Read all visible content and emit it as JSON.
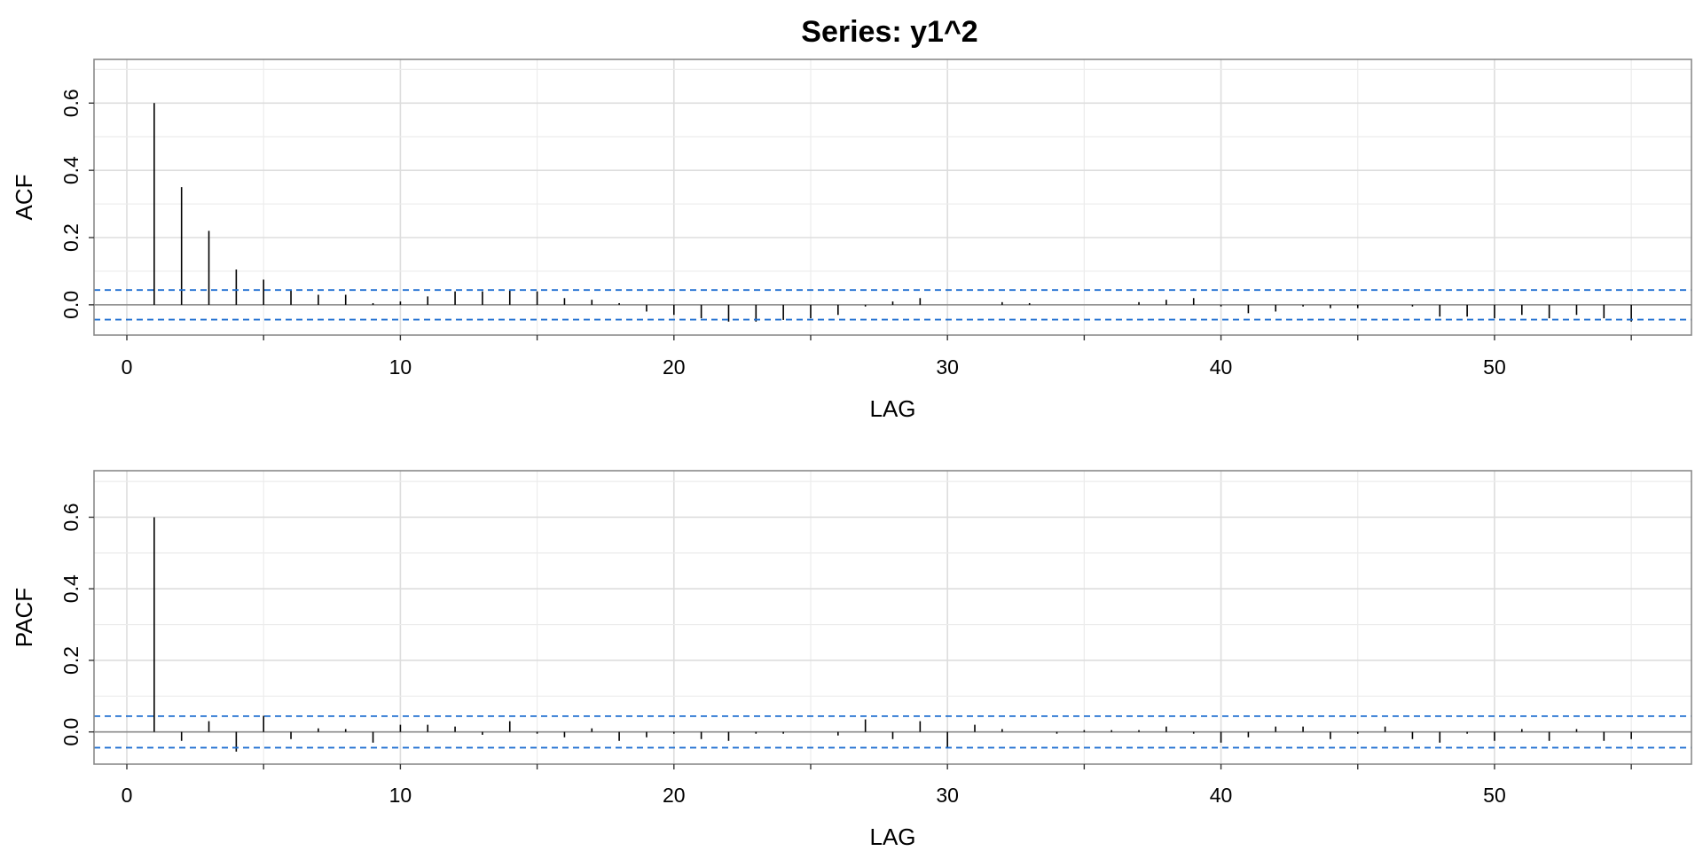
{
  "chart_data": [
    {
      "type": "bar",
      "subtype": "acf",
      "title": "Series:  y1^2",
      "xlabel": "LAG",
      "ylabel": "ACF",
      "xlim": [
        -1.2,
        57.2
      ],
      "ylim": [
        -0.09,
        0.73
      ],
      "x_ticks": [
        0,
        10,
        20,
        30,
        40,
        50
      ],
      "x_tick_labels": [
        "0",
        "10",
        "20",
        "30",
        "40",
        "50"
      ],
      "y_ticks": [
        0.0,
        0.2,
        0.4,
        0.6
      ],
      "y_tick_labels": [
        "0.0",
        "0.2",
        "0.4",
        "0.6"
      ],
      "confidence_band": [
        0.044,
        -0.044
      ],
      "band_color": "#1f6fd1",
      "grid": true,
      "lags": [
        1,
        2,
        3,
        4,
        5,
        6,
        7,
        8,
        9,
        10,
        11,
        12,
        13,
        14,
        15,
        16,
        17,
        18,
        19,
        20,
        21,
        22,
        23,
        24,
        25,
        26,
        27,
        28,
        29,
        30,
        31,
        32,
        33,
        34,
        35,
        36,
        37,
        38,
        39,
        40,
        41,
        42,
        43,
        44,
        45,
        46,
        47,
        48,
        49,
        50,
        51,
        52,
        53,
        54,
        55
      ],
      "values": [
        0.6,
        0.35,
        0.22,
        0.105,
        0.075,
        0.045,
        0.03,
        0.03,
        0.005,
        0.01,
        0.025,
        0.04,
        0.04,
        0.045,
        0.04,
        0.02,
        0.015,
        0.005,
        -0.02,
        -0.03,
        -0.04,
        -0.05,
        -0.05,
        -0.045,
        -0.04,
        -0.03,
        -0.005,
        0.01,
        0.02,
        0.0,
        0.0,
        0.008,
        0.005,
        0.0,
        0.0,
        0.0,
        0.008,
        0.015,
        0.02,
        -0.005,
        -0.025,
        -0.02,
        -0.005,
        -0.01,
        -0.01,
        0.0,
        -0.005,
        -0.035,
        -0.035,
        -0.04,
        -0.03,
        -0.04,
        -0.03,
        -0.04,
        -0.05
      ]
    },
    {
      "type": "bar",
      "subtype": "pacf",
      "title": "",
      "xlabel": "LAG",
      "ylabel": "PACF",
      "xlim": [
        -1.2,
        57.2
      ],
      "ylim": [
        -0.09,
        0.73
      ],
      "x_ticks": [
        0,
        10,
        20,
        30,
        40,
        50
      ],
      "x_tick_labels": [
        "0",
        "10",
        "20",
        "30",
        "40",
        "50"
      ],
      "y_ticks": [
        0.0,
        0.2,
        0.4,
        0.6
      ],
      "y_tick_labels": [
        "0.0",
        "0.2",
        "0.4",
        "0.6"
      ],
      "confidence_band": [
        0.044,
        -0.044
      ],
      "band_color": "#1f6fd1",
      "grid": true,
      "lags": [
        1,
        2,
        3,
        4,
        5,
        6,
        7,
        8,
        9,
        10,
        11,
        12,
        13,
        14,
        15,
        16,
        17,
        18,
        19,
        20,
        21,
        22,
        23,
        24,
        25,
        26,
        27,
        28,
        29,
        30,
        31,
        32,
        33,
        34,
        35,
        36,
        37,
        38,
        39,
        40,
        41,
        42,
        43,
        44,
        45,
        46,
        47,
        48,
        49,
        50,
        51,
        52,
        53,
        54,
        55
      ],
      "values": [
        0.6,
        -0.025,
        0.03,
        -0.055,
        0.045,
        -0.02,
        0.01,
        0.008,
        -0.03,
        0.02,
        0.02,
        0.015,
        -0.008,
        0.03,
        -0.005,
        -0.015,
        0.01,
        -0.025,
        -0.015,
        -0.005,
        -0.02,
        -0.025,
        -0.005,
        -0.005,
        0.0,
        -0.01,
        0.035,
        -0.02,
        0.03,
        -0.045,
        0.02,
        0.008,
        0.0,
        -0.005,
        0.005,
        0.005,
        0.005,
        0.015,
        -0.005,
        -0.03,
        -0.015,
        0.015,
        0.015,
        -0.02,
        -0.005,
        0.015,
        -0.02,
        -0.03,
        -0.005,
        -0.025,
        0.008,
        -0.025,
        0.008,
        -0.025,
        -0.02
      ]
    }
  ]
}
